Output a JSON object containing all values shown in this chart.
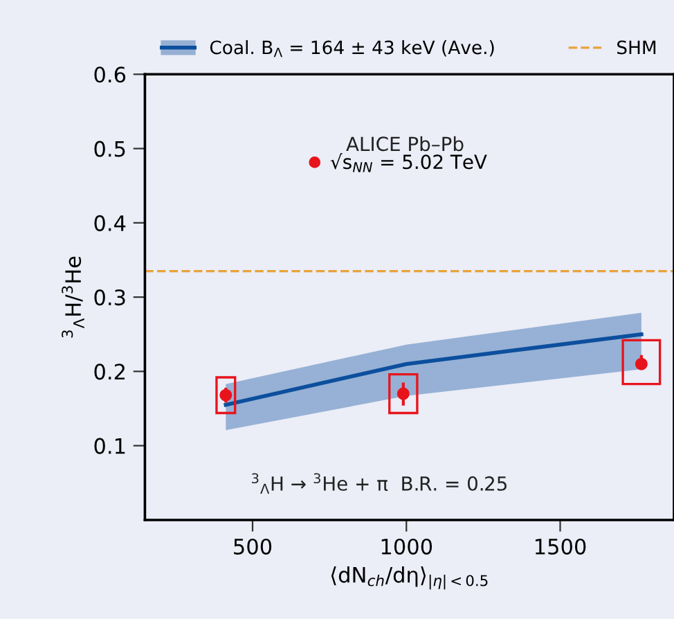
{
  "chart_data": {
    "type": "line",
    "xlabel": "⟨dN$_{ch}$/dη⟩$_{|η|<0.5}$",
    "ylabel": "$^{3}$$_{Λ}$H/$^{3}$He",
    "xlim": [
      150,
      1870
    ],
    "xticks": [
      500,
      1000,
      1500
    ],
    "ylim": [
      0,
      0.6
    ],
    "yticks": [
      0.1,
      0.2,
      0.3,
      0.4,
      0.5,
      0.6
    ],
    "series": [
      {
        "name": "Coal. B$_{Λ}$ = 164 ± 43 keV (Ave.)",
        "color": "#0d4f9e",
        "x": [
          413,
          1000,
          1764
        ],
        "values": [
          0.155,
          0.21,
          0.25
        ],
        "lower": [
          0.121,
          0.167,
          0.203
        ],
        "upper": [
          0.183,
          0.236,
          0.279
        ]
      },
      {
        "type": "bar",
        "color": "#e8141c",
        "x": [
          413,
          990,
          1764
        ],
        "base": [
          0.144,
          0.144,
          0.183
        ],
        "values": [
          0.048,
          0.052,
          0.059
        ]
      },
      {
        "name": "√s$_{NN}$ = 5.02 TeV",
        "type": "scatter",
        "marker": "circle",
        "color": "#e8141c",
        "x": [
          413,
          990,
          1764
        ],
        "values": [
          0.168,
          0.17,
          0.21
        ],
        "errors": [
          [
            0.158,
            0.178
          ],
          [
            0.154,
            0.185
          ],
          [
            0.205,
            0.222
          ]
        ]
      }
    ],
    "ref_lines": [
      {
        "axis": "y",
        "value": 0.335,
        "label": "SHM",
        "color": "#e8a33c",
        "line_style": "dashed"
      }
    ],
    "annotations": [
      "ALICE Pb–Pb",
      "$^{3}$$_{Λ}$H → $^{3}$He + π  B.R. = 0.25"
    ],
    "legend": "top",
    "grid": false
  }
}
